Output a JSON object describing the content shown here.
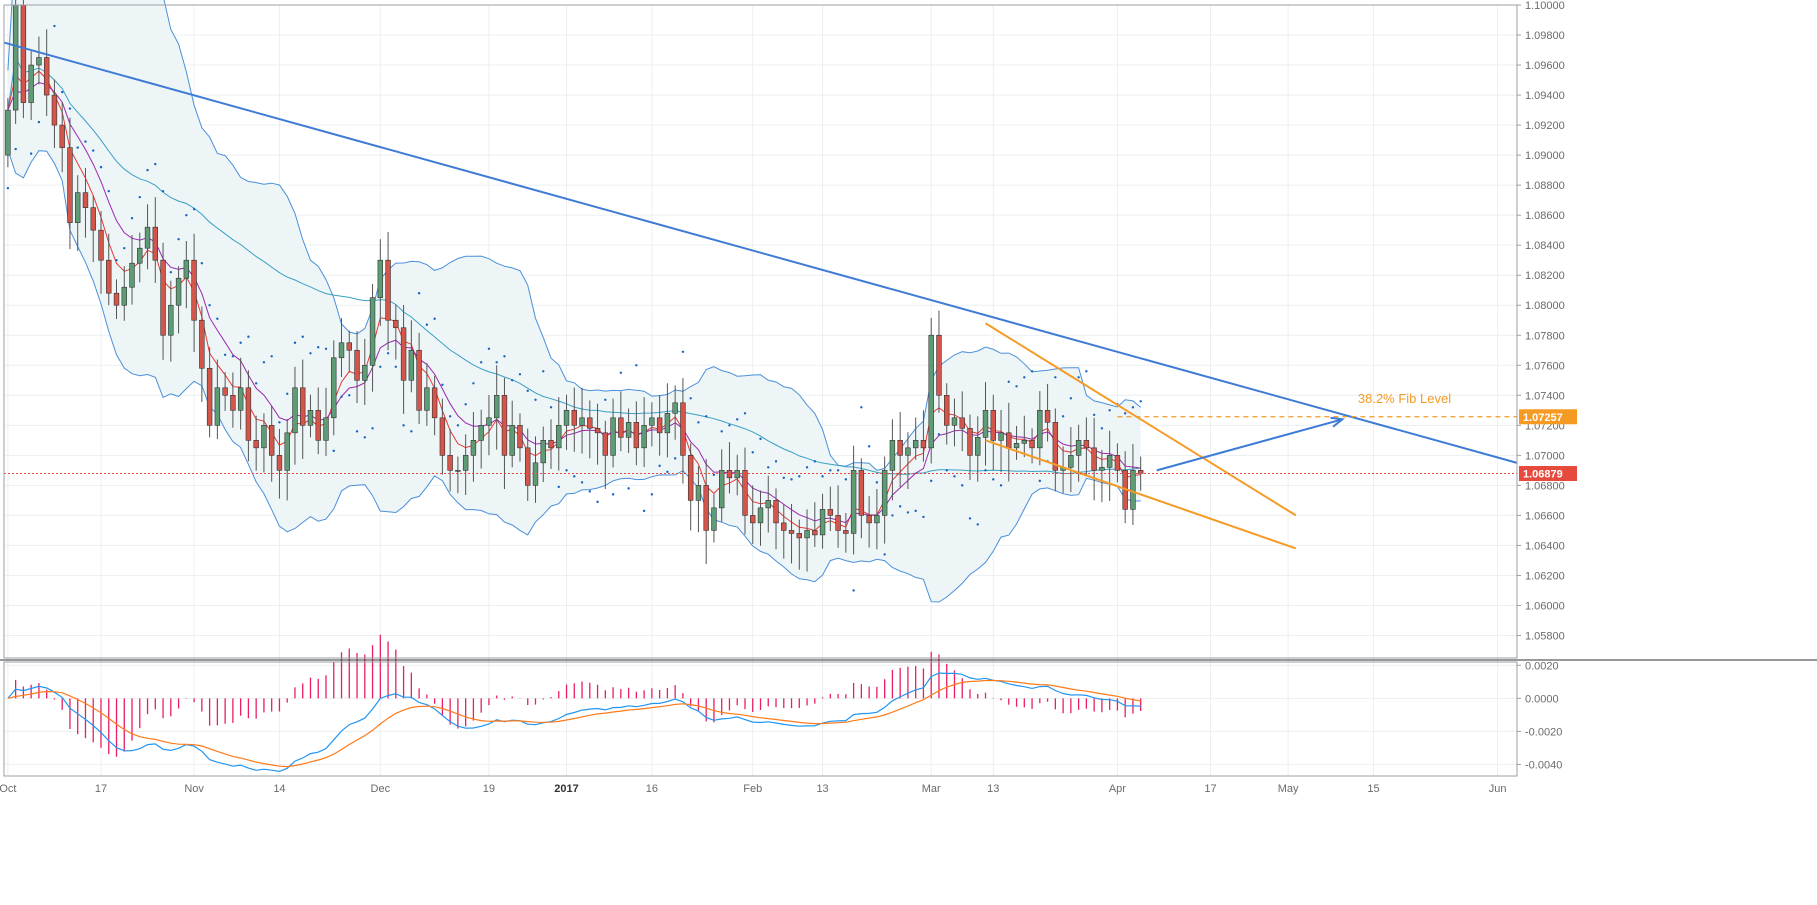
{
  "colors": {
    "up": "#5e9c76",
    "down": "#d4554a",
    "trend": "#3e7bd6",
    "channel": "#f59a23",
    "band": "#4a90d9",
    "band_fill": "#eef5f7",
    "ema_fast": "#e53935",
    "ema_slow": "#9c27b0",
    "sar": "#1565c0",
    "macd": "#2196f3",
    "signal": "#ff7a1a",
    "hist": "#e91e63",
    "price_tag": "#e64a3c",
    "fib_tag": "#f59a23"
  },
  "chart_data": [
    {
      "type": "candlestick",
      "ylim": [
        1.0565,
        1.1
      ],
      "y_ticks": [
        "1.05800",
        "1.06000",
        "1.06200",
        "1.06400",
        "1.06600",
        "1.06800",
        "1.07000",
        "1.07200",
        "1.07400",
        "1.07600",
        "1.07800",
        "1.08000",
        "1.08200",
        "1.08400",
        "1.08600",
        "1.08800",
        "1.09000",
        "1.09200",
        "1.09400",
        "1.09600",
        "1.09800",
        "1.10000"
      ],
      "x_ticks": [
        {
          "label": "Oct",
          "bold": false,
          "bar": 0
        },
        {
          "label": "17",
          "bold": false,
          "bar": 12
        },
        {
          "label": "Nov",
          "bold": false,
          "bar": 24
        },
        {
          "label": "14",
          "bold": false,
          "bar": 35
        },
        {
          "label": "Dec",
          "bold": false,
          "bar": 48
        },
        {
          "label": "19",
          "bold": false,
          "bar": 62
        },
        {
          "label": "2017",
          "bold": true,
          "bar": 72
        },
        {
          "label": "16",
          "bold": false,
          "bar": 83
        },
        {
          "label": "Feb",
          "bold": false,
          "bar": 96
        },
        {
          "label": "13",
          "bold": false,
          "bar": 105
        },
        {
          "label": "Mar",
          "bold": false,
          "bar": 119
        },
        {
          "label": "13",
          "bold": false,
          "bar": 127
        },
        {
          "label": "Apr",
          "bold": false,
          "bar": 143
        },
        {
          "label": "17",
          "bold": false,
          "bar": 155
        },
        {
          "label": "May",
          "bold": false,
          "bar": 165
        },
        {
          "label": "15",
          "bold": false,
          "bar": 176
        },
        {
          "label": "Jun",
          "bold": false,
          "bar": 192
        }
      ],
      "bar_count_axis": 195,
      "ohlc_closes": [
        1.093,
        1.1,
        1.0935,
        1.096,
        1.0965,
        1.094,
        1.092,
        1.0905,
        1.0855,
        1.0875,
        1.0865,
        1.085,
        1.083,
        1.0808,
        1.08,
        1.0812,
        1.0828,
        1.0838,
        1.0852,
        1.083,
        1.078,
        1.08,
        1.0818,
        1.083,
        1.079,
        1.0758,
        1.072,
        1.0745,
        1.074,
        1.073,
        1.0745,
        1.071,
        1.0705,
        1.072,
        1.07,
        1.069,
        1.0715,
        1.0745,
        1.072,
        1.073,
        1.071,
        1.0725,
        1.0765,
        1.0775,
        1.077,
        1.075,
        1.076,
        1.0805,
        1.083,
        1.079,
        1.0785,
        1.075,
        1.077,
        1.073,
        1.0745,
        1.0725,
        1.07,
        1.069,
        1.069,
        1.07,
        1.071,
        1.072,
        1.0725,
        1.074,
        1.07,
        1.072,
        1.0705,
        1.068,
        1.0695,
        1.071,
        1.0705,
        1.072,
        1.073,
        1.072,
        1.0725,
        1.0718,
        1.0715,
        1.07,
        1.0725,
        1.0712,
        1.0722,
        1.0705,
        1.072,
        1.0725,
        1.0715,
        1.0728,
        1.0735,
        1.07,
        1.067,
        1.068,
        1.065,
        1.0665,
        1.069,
        1.0685,
        1.069,
        1.066,
        1.0655,
        1.0665,
        1.067,
        1.0655,
        1.065,
        1.0648,
        1.0645,
        1.065,
        1.0647,
        1.0664,
        1.066,
        1.065,
        1.0648,
        1.069,
        1.066,
        1.0655,
        1.066,
        1.069,
        1.071,
        1.07,
        1.0705,
        1.071,
        1.0705,
        1.078,
        1.074,
        1.072,
        1.0725,
        1.0718,
        1.07,
        1.0712,
        1.073,
        1.071,
        1.0715,
        1.0705,
        1.0708,
        1.071,
        1.0705,
        1.073,
        1.0722,
        1.069,
        1.0692,
        1.07,
        1.071,
        1.0705,
        1.069,
        1.0692,
        1.07,
        1.069,
        1.0664,
        1.069,
        1.0688
      ],
      "ohlc_opens": [
        1.09,
        1.093,
        1.1,
        1.0935,
        1.096,
        1.0965,
        1.094,
        1.092,
        1.0905,
        1.0855,
        1.0875,
        1.0865,
        1.085,
        1.083,
        1.0808,
        1.08,
        1.0812,
        1.0828,
        1.0838,
        1.0852,
        1.083,
        1.078,
        1.08,
        1.0818,
        1.083,
        1.079,
        1.0758,
        1.072,
        1.0745,
        1.074,
        1.073,
        1.0745,
        1.071,
        1.0705,
        1.072,
        1.07,
        1.069,
        1.0715,
        1.0745,
        1.072,
        1.073,
        1.071,
        1.0725,
        1.0765,
        1.0775,
        1.077,
        1.075,
        1.076,
        1.0805,
        1.083,
        1.079,
        1.0785,
        1.075,
        1.077,
        1.073,
        1.0745,
        1.0725,
        1.07,
        1.069,
        1.069,
        1.07,
        1.071,
        1.072,
        1.0725,
        1.074,
        1.07,
        1.072,
        1.0705,
        1.068,
        1.0695,
        1.071,
        1.0705,
        1.072,
        1.073,
        1.072,
        1.0725,
        1.0718,
        1.0715,
        1.07,
        1.0725,
        1.0712,
        1.0722,
        1.0705,
        1.072,
        1.0725,
        1.0715,
        1.0728,
        1.0735,
        1.07,
        1.067,
        1.068,
        1.065,
        1.0665,
        1.069,
        1.0685,
        1.069,
        1.066,
        1.0655,
        1.0665,
        1.067,
        1.0655,
        1.065,
        1.0648,
        1.0645,
        1.065,
        1.0647,
        1.0664,
        1.066,
        1.065,
        1.0648,
        1.069,
        1.066,
        1.0655,
        1.066,
        1.069,
        1.071,
        1.07,
        1.0705,
        1.071,
        1.0705,
        1.078,
        1.074,
        1.072,
        1.0725,
        1.0718,
        1.07,
        1.0712,
        1.073,
        1.071,
        1.0715,
        1.0705,
        1.0708,
        1.071,
        1.0705,
        1.073,
        1.0722,
        1.069,
        1.0692,
        1.07,
        1.071,
        1.0705,
        1.069,
        1.0692,
        1.07,
        1.069,
        1.0664,
        1.069
      ],
      "last_price": "1.06879",
      "fib_level": "1.07257",
      "annotation": "38.2% Fib Level"
    },
    {
      "type": "macd",
      "ylim": [
        -0.0047,
        0.0022
      ],
      "y_ticks": [
        "0.0020",
        "0.0000",
        "-0.0020",
        "-0.0040"
      ]
    }
  ]
}
